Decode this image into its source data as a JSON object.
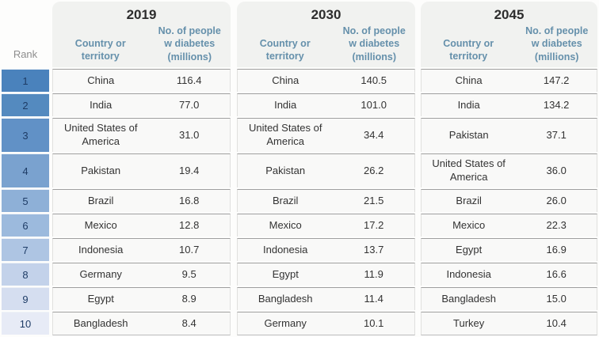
{
  "table": {
    "rank_header": "Rank",
    "col_country": "Country or\nterritory",
    "col_number": "No. of people\nw diabetes\n(millions)",
    "years": [
      "2019",
      "2030",
      "2045"
    ],
    "ranks": [
      "1",
      "2",
      "3",
      "4",
      "5",
      "6",
      "7",
      "8",
      "9",
      "10"
    ],
    "sections": [
      {
        "year": "2019",
        "rows": [
          {
            "country": "China",
            "value": "116.4"
          },
          {
            "country": "India",
            "value": "77.0"
          },
          {
            "country": "United States of America",
            "value": "31.0"
          },
          {
            "country": "Pakistan",
            "value": "19.4"
          },
          {
            "country": "Brazil",
            "value": "16.8"
          },
          {
            "country": "Mexico",
            "value": "12.8"
          },
          {
            "country": "Indonesia",
            "value": "10.7"
          },
          {
            "country": "Germany",
            "value": "9.5"
          },
          {
            "country": "Egypt",
            "value": "8.9"
          },
          {
            "country": "Bangladesh",
            "value": "8.4"
          }
        ]
      },
      {
        "year": "2030",
        "rows": [
          {
            "country": "China",
            "value": "140.5"
          },
          {
            "country": "India",
            "value": "101.0"
          },
          {
            "country": "United States of America",
            "value": "34.4"
          },
          {
            "country": "Pakistan",
            "value": "26.2"
          },
          {
            "country": "Brazil",
            "value": "21.5"
          },
          {
            "country": "Mexico",
            "value": "17.2"
          },
          {
            "country": "Indonesia",
            "value": "13.7"
          },
          {
            "country": "Egypt",
            "value": "11.9"
          },
          {
            "country": "Bangladesh",
            "value": "11.4"
          },
          {
            "country": "Germany",
            "value": "10.1"
          }
        ]
      },
      {
        "year": "2045",
        "rows": [
          {
            "country": "China",
            "value": "147.2"
          },
          {
            "country": "India",
            "value": "134.2"
          },
          {
            "country": "Pakistan",
            "value": "37.1"
          },
          {
            "country": "United States of America",
            "value": "36.0"
          },
          {
            "country": "Brazil",
            "value": "26.0"
          },
          {
            "country": "Mexico",
            "value": "22.3"
          },
          {
            "country": "Egypt",
            "value": "16.9"
          },
          {
            "country": "Indonesia",
            "value": "16.6"
          },
          {
            "country": "Bangladesh",
            "value": "15.0"
          },
          {
            "country": "Turkey",
            "value": "10.4"
          }
        ]
      }
    ]
  },
  "colors": {
    "rank_scale": [
      "#4a82bc",
      "#548abf",
      "#6191c6",
      "#7aa2cf",
      "#8eb0d7",
      "#9cbadd",
      "#aec5e3",
      "#c3d2ea",
      "#d5def0",
      "#e7ebf6"
    ],
    "rank_text": "#1e3c66",
    "header_text": "#6590ab",
    "panel_header_bg": "#f1f2f0",
    "row_bg": "#f9f9f8"
  },
  "chart_data": {
    "type": "table",
    "columns": [
      "Rank",
      "Country or territory",
      "No. of people w diabetes (millions)"
    ],
    "sections": [
      {
        "year": "2019",
        "rows": [
          [
            "China",
            116.4
          ],
          [
            "India",
            77.0
          ],
          [
            "United States of America",
            31.0
          ],
          [
            "Pakistan",
            19.4
          ],
          [
            "Brazil",
            16.8
          ],
          [
            "Mexico",
            12.8
          ],
          [
            "Indonesia",
            10.7
          ],
          [
            "Germany",
            9.5
          ],
          [
            "Egypt",
            8.9
          ],
          [
            "Bangladesh",
            8.4
          ]
        ]
      },
      {
        "year": "2030",
        "rows": [
          [
            "China",
            140.5
          ],
          [
            "India",
            101.0
          ],
          [
            "United States of America",
            34.4
          ],
          [
            "Pakistan",
            26.2
          ],
          [
            "Brazil",
            21.5
          ],
          [
            "Mexico",
            17.2
          ],
          [
            "Indonesia",
            13.7
          ],
          [
            "Egypt",
            11.9
          ],
          [
            "Bangladesh",
            11.4
          ],
          [
            "Germany",
            10.1
          ]
        ]
      },
      {
        "year": "2045",
        "rows": [
          [
            "China",
            147.2
          ],
          [
            "India",
            134.2
          ],
          [
            "Pakistan",
            37.1
          ],
          [
            "United States of America",
            36.0
          ],
          [
            "Brazil",
            26.0
          ],
          [
            "Mexico",
            22.3
          ],
          [
            "Egypt",
            16.9
          ],
          [
            "Indonesia",
            16.6
          ],
          [
            "Bangladesh",
            15.0
          ],
          [
            "Turkey",
            10.4
          ]
        ]
      }
    ]
  }
}
